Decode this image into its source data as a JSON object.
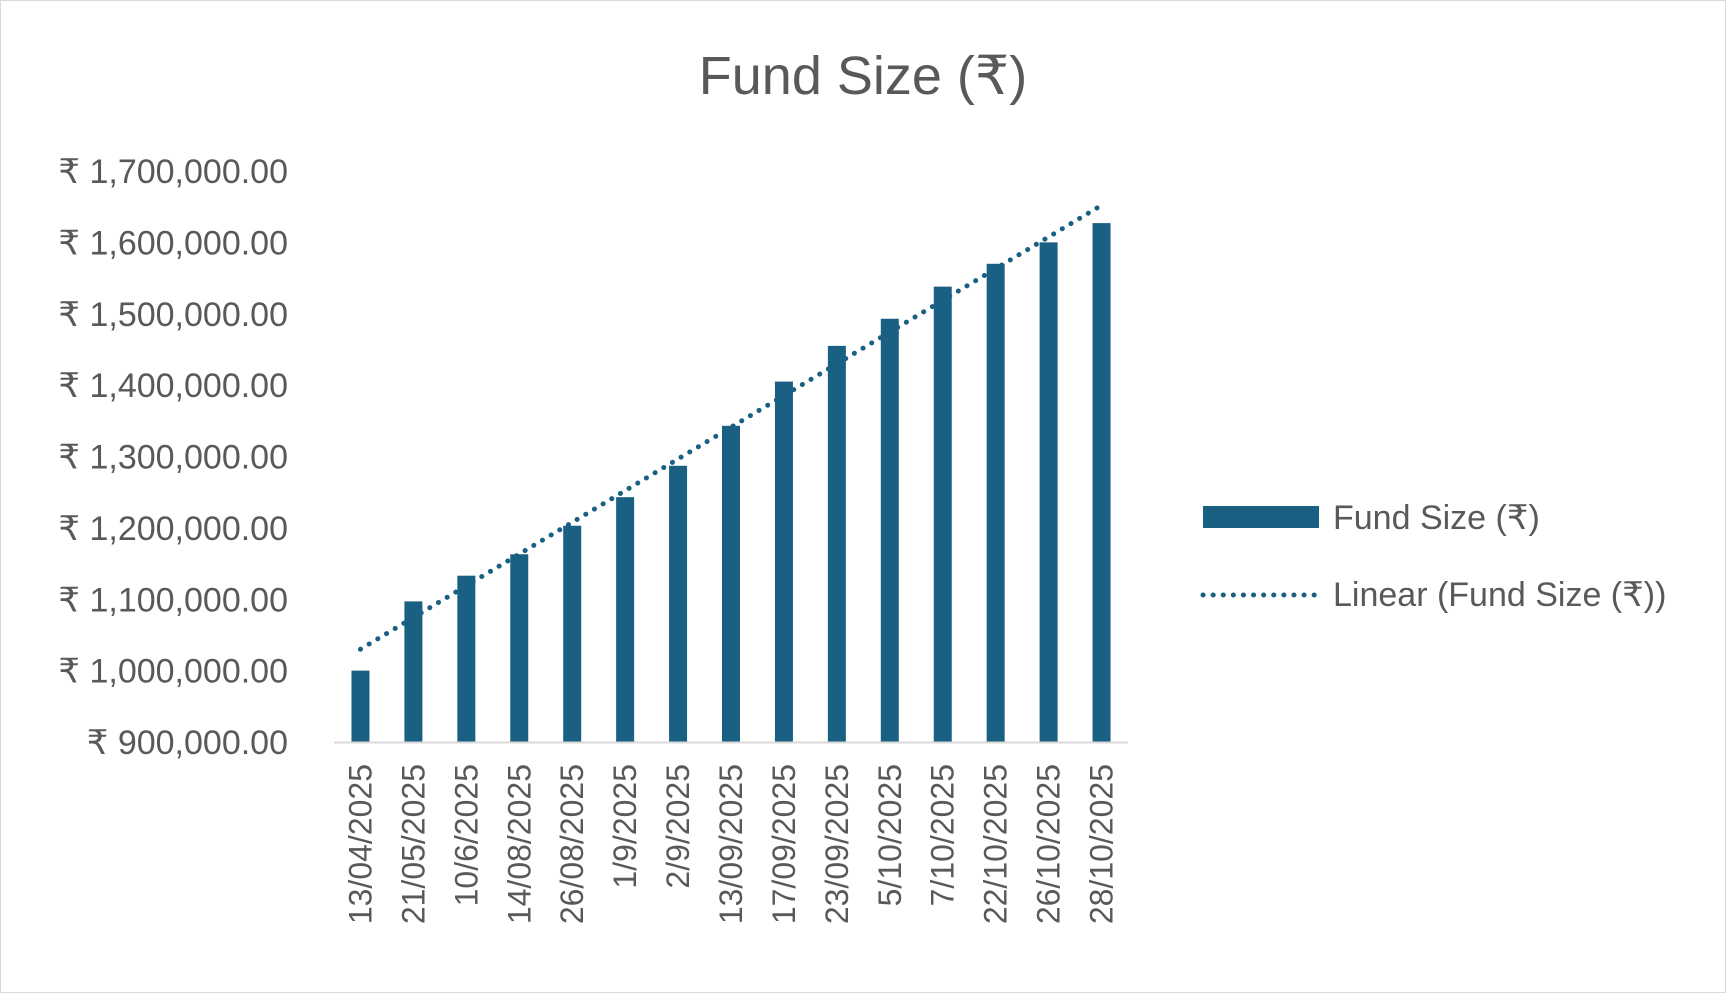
{
  "chart_data": {
    "type": "bar",
    "title": "Fund Size (₹)",
    "xlabel": "",
    "ylabel": "",
    "categories": [
      "13/04/2025",
      "21/05/2025",
      "10/6/2025",
      "14/08/2025",
      "26/08/2025",
      "1/9/2025",
      "2/9/2025",
      "13/09/2025",
      "17/09/2025",
      "23/09/2025",
      "5/10/2025",
      "7/10/2025",
      "22/10/2025",
      "26/10/2025",
      "28/10/2025"
    ],
    "series": [
      {
        "name": "Fund Size (₹)",
        "values": [
          1000000,
          1097000,
          1133000,
          1163000,
          1203000,
          1243000,
          1287000,
          1343000,
          1405000,
          1455000,
          1493000,
          1538000,
          1570000,
          1600000,
          1627000
        ]
      }
    ],
    "trendline": {
      "name": "Linear (Fund Size (₹))",
      "type": "linear",
      "start": 1030000,
      "end": 1652000
    },
    "ylim": [
      900000,
      1700000
    ],
    "y_ticks": [
      "₹ 900,000.00",
      "₹ 1,000,000.00",
      "₹ 1,100,000.00",
      "₹ 1,200,000.00",
      "₹ 1,300,000.00",
      "₹ 1,400,000.00",
      "₹ 1,500,000.00",
      "₹ 1,600,000.00",
      "₹ 1,700,000.00"
    ],
    "grid": false,
    "legend_position": "right",
    "colors": {
      "bar": "#1a6083",
      "trendline": "#1a6083",
      "text": "#595959",
      "axis": "#d9d9d9"
    }
  }
}
